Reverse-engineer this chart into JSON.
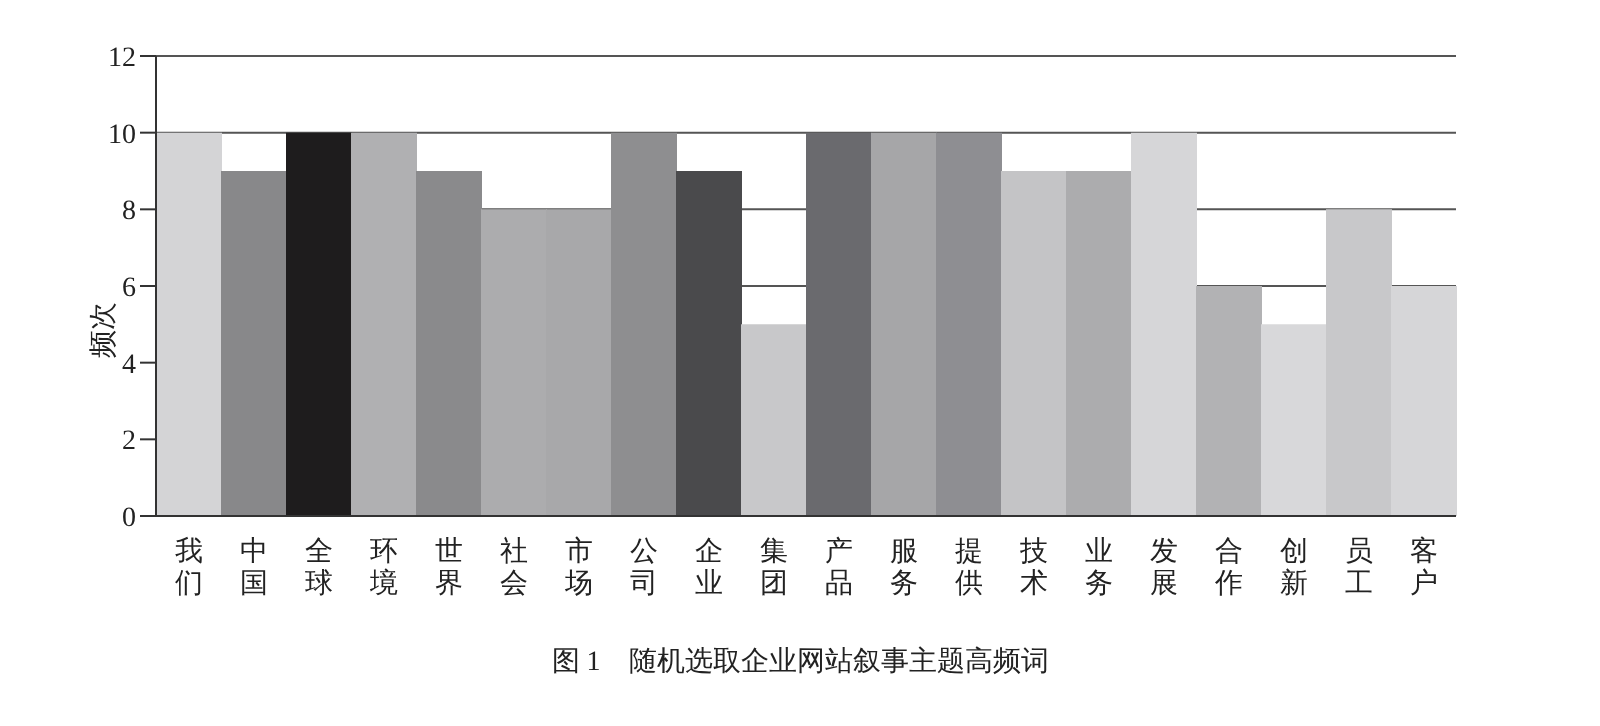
{
  "chart_data": {
    "type": "bar",
    "title": "图 1　随机选取企业网站叙事主题高频词",
    "ylabel": "频次",
    "categories": [
      "我们",
      "中国",
      "全球",
      "环境",
      "世界",
      "社会",
      "市场",
      "公司",
      "企业",
      "集团",
      "产品",
      "服务",
      "提供",
      "技术",
      "业务",
      "发展",
      "合作",
      "创新",
      "员工",
      "客户"
    ],
    "values": [
      10,
      9,
      10,
      10,
      9,
      8,
      8,
      10,
      9,
      5,
      10,
      10,
      10,
      9,
      9,
      10,
      6,
      5,
      8,
      6
    ],
    "colors": [
      "#d4d4d6",
      "#88888a",
      "#1e1c1d",
      "#b0b0b2",
      "#8a8a8c",
      "#acacae",
      "#a8a8aa",
      "#8e8e90",
      "#4a4a4c",
      "#c8c8ca",
      "#6a6a6e",
      "#a6a6a8",
      "#8e8e92",
      "#c4c4c6",
      "#acacae",
      "#d6d6d8",
      "#b2b2b4",
      "#d8d8da",
      "#c8c8ca",
      "#d6d6d8"
    ],
    "ylim": [
      0,
      12
    ],
    "yticks": [
      0,
      2,
      4,
      6,
      8,
      10,
      12
    ],
    "grid": "y"
  }
}
